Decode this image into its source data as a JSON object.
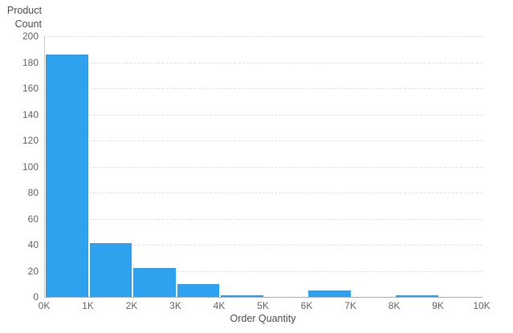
{
  "chart_colors": {
    "bar_fill": "#2ea2ef",
    "gridline": "#e2e2e2",
    "y_axis_line": "#c9c9c9",
    "x_axis_line": "#aeaeae",
    "tick_text": "#666666",
    "axis_title_text": "#4f4f4f",
    "background": "#ffffff"
  },
  "chart_data": {
    "type": "bar",
    "subtype": "histogram",
    "title": "",
    "xlabel": "Order Quantity",
    "ylabel": "Product Count",
    "ylabel_line1": "Product",
    "ylabel_line2": "Count",
    "x_tick_labels": [
      "0K",
      "1K",
      "2K",
      "3K",
      "4K",
      "5K",
      "6K",
      "7K",
      "8K",
      "9K",
      "10K"
    ],
    "y_ticks": [
      0,
      20,
      40,
      60,
      80,
      100,
      120,
      140,
      160,
      180,
      200
    ],
    "ylim": [
      0,
      200
    ],
    "xlim_labels": [
      "0K",
      "10K"
    ],
    "bin_width_label": "1K",
    "categories": [
      "0K-1K",
      "1K-2K",
      "2K-3K",
      "3K-4K",
      "4K-5K",
      "5K-6K",
      "6K-7K",
      "7K-8K",
      "8K-9K",
      "9K-10K"
    ],
    "values": [
      186,
      41,
      22,
      10,
      1,
      0,
      5,
      0,
      1,
      0
    ],
    "grid": "horizontal-dashed",
    "legend": "none"
  }
}
